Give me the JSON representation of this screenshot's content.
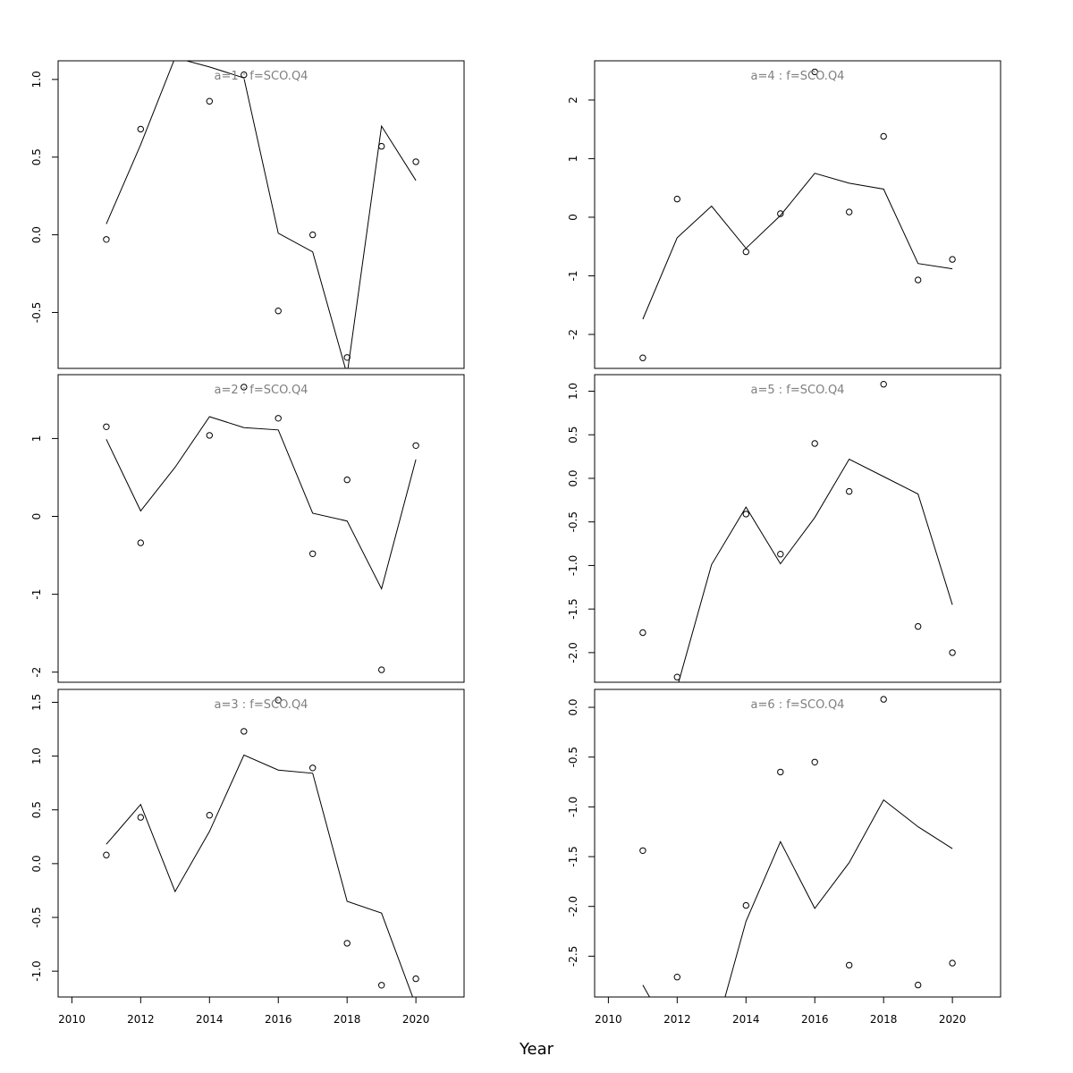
{
  "xlabel": "Year",
  "x_ticks": [
    "2010",
    "2012",
    "2014",
    "2016",
    "2018",
    "2020"
  ],
  "chart_data": [
    {
      "type": "scatter",
      "title": "a=1  :  f=SCO.Q4",
      "xlim": [
        2009.6,
        2021.4
      ],
      "ylim": [
        -0.86,
        1.12
      ],
      "yticks": [
        "-0.5",
        "0.0",
        "0.5",
        "1.0"
      ],
      "ytick_values": [
        -0.5,
        0.0,
        0.5,
        1.0
      ],
      "observed": [
        [
          2011,
          -0.03
        ],
        [
          2012,
          0.68
        ],
        [
          2014,
          0.86
        ],
        [
          2015,
          1.03
        ],
        [
          2016,
          -0.49
        ],
        [
          2017,
          0.0
        ],
        [
          2018,
          -0.79
        ],
        [
          2019,
          0.57
        ],
        [
          2020,
          0.47
        ]
      ],
      "fitted": [
        [
          2011,
          0.07
        ],
        [
          2012,
          0.58
        ],
        [
          2013,
          1.14
        ],
        [
          2014,
          1.08
        ],
        [
          2015,
          1.01
        ],
        [
          2016,
          0.01
        ],
        [
          2017,
          -0.11
        ],
        [
          2018,
          -0.9
        ],
        [
          2019,
          0.7
        ],
        [
          2020,
          0.35
        ]
      ]
    },
    {
      "type": "scatter",
      "title": "a=2  :  f=SCO.Q4",
      "xlim": [
        2009.6,
        2021.4
      ],
      "ylim": [
        -2.13,
        1.82
      ],
      "yticks": [
        "-2",
        "-1",
        "0",
        "1"
      ],
      "ytick_values": [
        -2,
        -1,
        0,
        1
      ],
      "observed": [
        [
          2011,
          1.15
        ],
        [
          2012,
          -0.34
        ],
        [
          2014,
          1.04
        ],
        [
          2015,
          1.66
        ],
        [
          2016,
          1.26
        ],
        [
          2017,
          -0.48
        ],
        [
          2018,
          0.47
        ],
        [
          2019,
          -1.97
        ],
        [
          2020,
          0.91
        ]
      ],
      "fitted": [
        [
          2011,
          0.99
        ],
        [
          2012,
          0.07
        ],
        [
          2013,
          0.63
        ],
        [
          2014,
          1.28
        ],
        [
          2015,
          1.14
        ],
        [
          2016,
          1.11
        ],
        [
          2017,
          0.04
        ],
        [
          2018,
          -0.06
        ],
        [
          2019,
          -0.93
        ],
        [
          2020,
          0.73
        ]
      ]
    },
    {
      "type": "scatter",
      "title": "a=3  :  f=SCO.Q4",
      "xlim": [
        2009.6,
        2021.4
      ],
      "ylim": [
        -1.24,
        1.62
      ],
      "yticks": [
        "-1.0",
        "-0.5",
        "0.0",
        "0.5",
        "1.0",
        "1.5"
      ],
      "ytick_values": [
        -1.0,
        -0.5,
        0.0,
        0.5,
        1.0,
        1.5
      ],
      "observed": [
        [
          2011,
          0.08
        ],
        [
          2012,
          0.43
        ],
        [
          2014,
          0.45
        ],
        [
          2015,
          1.23
        ],
        [
          2016,
          1.52
        ],
        [
          2017,
          0.89
        ],
        [
          2018,
          -0.74
        ],
        [
          2019,
          -1.13
        ],
        [
          2020,
          -1.07
        ]
      ],
      "fitted": [
        [
          2011,
          0.18
        ],
        [
          2012,
          0.55
        ],
        [
          2013,
          -0.26
        ],
        [
          2014,
          0.3
        ],
        [
          2015,
          1.01
        ],
        [
          2016,
          0.87
        ],
        [
          2017,
          0.84
        ],
        [
          2018,
          -0.35
        ],
        [
          2019,
          -0.46
        ],
        [
          2020,
          -1.32
        ]
      ]
    },
    {
      "type": "scatter",
      "title": "a=4  :  f=SCO.Q4",
      "xlim": [
        2009.6,
        2021.4
      ],
      "ylim": [
        -2.58,
        2.67
      ],
      "yticks": [
        "-2",
        "-1",
        "0",
        "1",
        "2"
      ],
      "ytick_values": [
        -2,
        -1,
        0,
        1,
        2
      ],
      "observed": [
        [
          2011,
          -2.4
        ],
        [
          2012,
          0.31
        ],
        [
          2014,
          -0.59
        ],
        [
          2015,
          0.06
        ],
        [
          2016,
          2.48
        ],
        [
          2017,
          0.09
        ],
        [
          2018,
          1.38
        ],
        [
          2019,
          -1.07
        ],
        [
          2020,
          -0.72
        ]
      ],
      "fitted": [
        [
          2011,
          -1.74
        ],
        [
          2012,
          -0.35
        ],
        [
          2013,
          0.19
        ],
        [
          2014,
          -0.53
        ],
        [
          2015,
          0.03
        ],
        [
          2016,
          0.75
        ],
        [
          2017,
          0.58
        ],
        [
          2018,
          0.48
        ],
        [
          2019,
          -0.79
        ],
        [
          2020,
          -0.88
        ]
      ]
    },
    {
      "type": "scatter",
      "title": "a=5  :  f=SCO.Q4",
      "xlim": [
        2009.6,
        2021.4
      ],
      "ylim": [
        -2.34,
        1.19
      ],
      "yticks": [
        "-2.0",
        "-1.5",
        "-1.0",
        "-0.5",
        "0.0",
        "0.5",
        "1.0"
      ],
      "ytick_values": [
        -2.0,
        -1.5,
        -1.0,
        -0.5,
        0.0,
        0.5,
        1.0
      ],
      "observed": [
        [
          2011,
          -1.77
        ],
        [
          2012,
          -2.28
        ],
        [
          2014,
          -0.41
        ],
        [
          2015,
          -0.87
        ],
        [
          2016,
          0.4
        ],
        [
          2017,
          -0.15
        ],
        [
          2018,
          1.08
        ],
        [
          2019,
          -1.7
        ],
        [
          2020,
          -2.0
        ]
      ],
      "fitted": [
        [
          2011,
          -3.25
        ],
        [
          2012,
          -2.4
        ],
        [
          2013,
          -0.99
        ],
        [
          2014,
          -0.33
        ],
        [
          2015,
          -0.98
        ],
        [
          2016,
          -0.45
        ],
        [
          2017,
          0.22
        ],
        [
          2018,
          0.02
        ],
        [
          2019,
          -0.18
        ],
        [
          2020,
          -1.45
        ]
      ]
    },
    {
      "type": "scatter",
      "title": "a=6  :  f=SCO.Q4",
      "xlim": [
        2009.6,
        2021.4
      ],
      "ylim": [
        -2.91,
        0.18
      ],
      "yticks": [
        "-2.5",
        "-2.0",
        "-1.5",
        "-1.0",
        "-0.5",
        "0.0"
      ],
      "ytick_values": [
        -2.5,
        -2.0,
        -1.5,
        -1.0,
        -0.5,
        0.0
      ],
      "observed": [
        [
          2011,
          -1.44
        ],
        [
          2012,
          -2.71
        ],
        [
          2014,
          -1.99
        ],
        [
          2015,
          -0.65
        ],
        [
          2016,
          -0.55
        ],
        [
          2017,
          -2.59
        ],
        [
          2018,
          0.08
        ],
        [
          2019,
          -2.79
        ],
        [
          2020,
          -2.57
        ]
      ],
      "fitted": [
        [
          2011,
          -2.79
        ],
        [
          2012,
          -3.4
        ],
        [
          2013,
          -3.4
        ],
        [
          2014,
          -2.15
        ],
        [
          2015,
          -1.35
        ],
        [
          2016,
          -2.02
        ],
        [
          2017,
          -1.56
        ],
        [
          2018,
          -0.93
        ],
        [
          2019,
          -1.2
        ],
        [
          2020,
          -1.42
        ]
      ]
    }
  ]
}
